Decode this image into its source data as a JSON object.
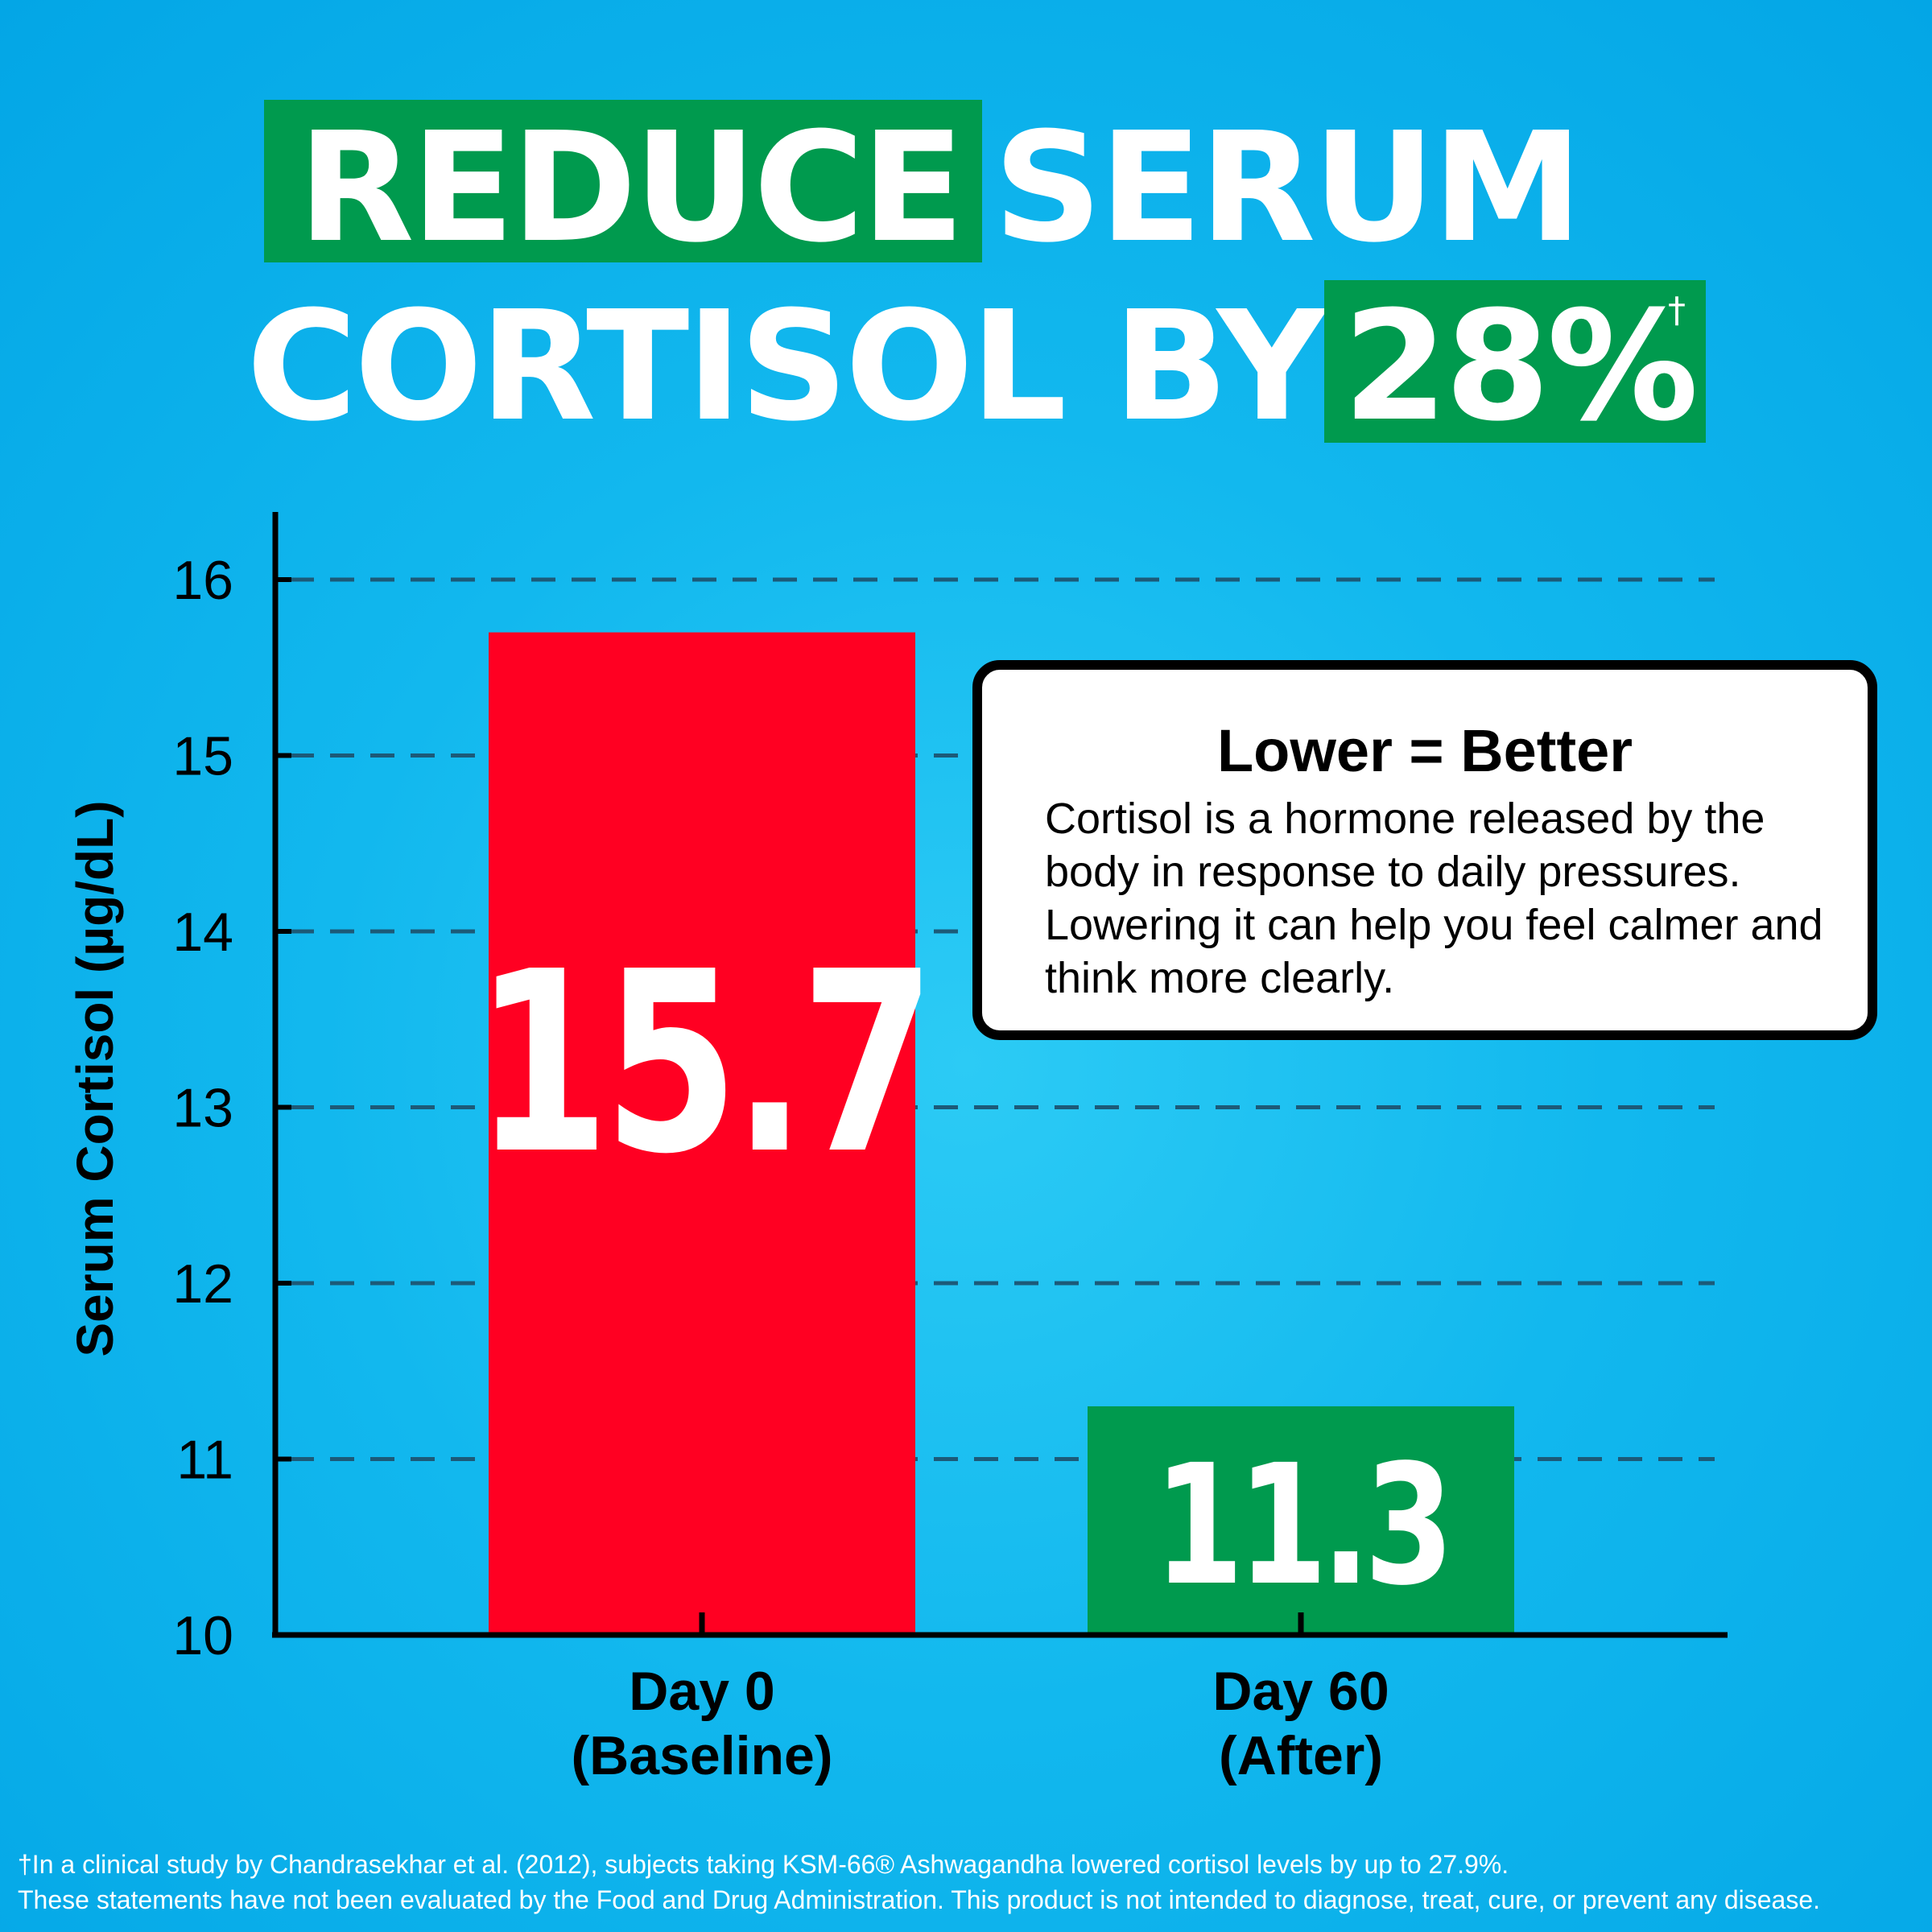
{
  "headline": {
    "highlight_word": "REDUCE",
    "line1_rest": "SERUM",
    "line2_start": "CORTISOL BY",
    "highlight_percent": "28%",
    "dagger": "†"
  },
  "colors": {
    "background": "#0aaee9",
    "highlight_green": "#009a4e",
    "baseline_bar": "#ff0022",
    "after_bar": "#009a4e",
    "axis": "#000000",
    "gridline": "#1c5a78"
  },
  "chart_data": {
    "type": "bar",
    "categories": [
      "Day 0\n(Baseline)",
      "Day 60\n(After)"
    ],
    "category_lines": [
      [
        "Day 0",
        "(Baseline)"
      ],
      [
        "Day 60",
        "(After)"
      ]
    ],
    "values": [
      15.7,
      11.3
    ],
    "value_labels": [
      "15.7",
      "11.3"
    ],
    "bar_colors": [
      "#ff0022",
      "#009a4e"
    ],
    "ylabel": "Serum Cortisol (µg/dL)",
    "xlabel": "",
    "title": "",
    "ylim": [
      10,
      16
    ],
    "yticks": [
      10,
      11,
      12,
      13,
      14,
      15,
      16
    ],
    "grid": "dashed horizontal",
    "legend": "none"
  },
  "callout": {
    "title": "Lower = Better",
    "body": "Cortisol is a hormone released by the body in response to daily pressures. Lowering it can help you feel calmer and think more clearly."
  },
  "footnote": {
    "line1": "†In a clinical study by Chandrasekhar et al. (2012), subjects taking KSM-66® Ashwagandha lowered cortisol levels by up to 27.9%.",
    "line2": "These statements have not been evaluated by the Food and Drug Administration. This product is not intended to diagnose, treat, cure, or prevent any disease."
  }
}
